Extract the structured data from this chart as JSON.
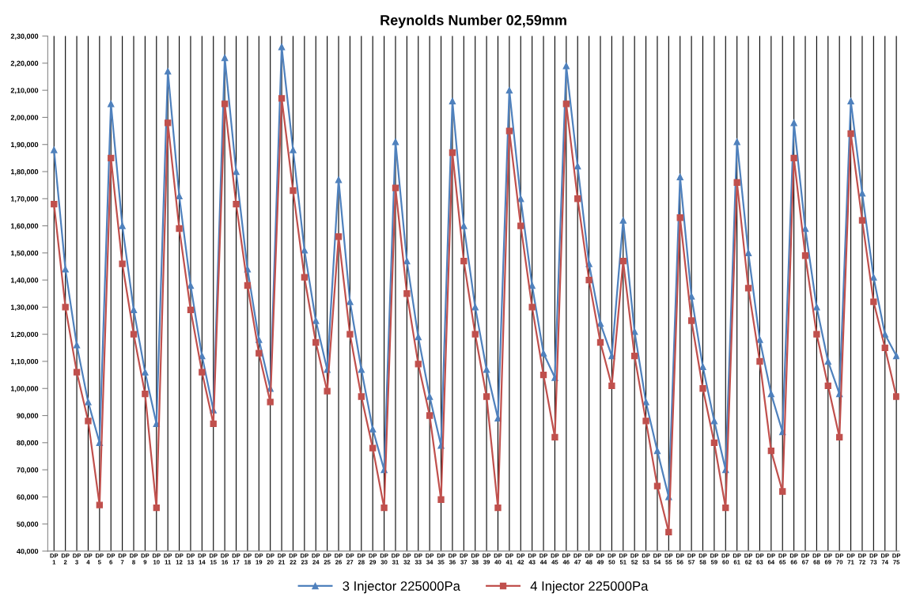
{
  "chart_data": {
    "type": "line",
    "title": "Reynolds Number 02,59mm",
    "categories": [
      "DP\n1",
      "DP\n2",
      "DP\n3",
      "DP\n4",
      "DP\n5",
      "DP\n6",
      "DP\n7",
      "DP\n8",
      "DP\n9",
      "DP\n10",
      "DP\n11",
      "DP\n12",
      "DP\n13",
      "DP\n14",
      "DP\n15",
      "DP\n16",
      "DP\n17",
      "DP\n18",
      "DP\n19",
      "DP\n20",
      "DP\n21",
      "DP\n22",
      "DP\n23",
      "DP\n24",
      "DP\n25",
      "DP\n26",
      "DP\n27",
      "DP\n28",
      "DP\n29",
      "DP\n30",
      "DP\n31",
      "DP\n32",
      "DP\n33",
      "DP\n34",
      "DP\n35",
      "DP\n36",
      "DP\n37",
      "DP\n38",
      "DP\n39",
      "DP\n40",
      "DP\n41",
      "DP\n42",
      "DP\n43",
      "DP\n44",
      "DP\n45",
      "DP\n46",
      "DP\n47",
      "DP\n48",
      "DP\n49",
      "DP\n50",
      "DP\n51",
      "DP\n52",
      "DP\n53",
      "DP\n54",
      "DP\n55",
      "DP\n56",
      "DP\n57",
      "DP\n58",
      "DP\n59",
      "DP\n60",
      "DP\n61",
      "DP\n62",
      "DP\n63",
      "DP\n64",
      "DP\n65",
      "DP\n66",
      "DP\n67",
      "DP\n68",
      "DP\n69",
      "DP\n70",
      "DP\n71",
      "DP\n72",
      "DP\n73",
      "DP\n74",
      "DP\n75"
    ],
    "series": [
      {
        "name": "3 Injector 225000Pa",
        "color": "#4f81bd",
        "marker": "triangle",
        "values": [
          188000,
          144000,
          116000,
          95000,
          80000,
          205000,
          160000,
          129000,
          106000,
          87000,
          217000,
          171000,
          138000,
          112000,
          92000,
          222000,
          180000,
          144000,
          118000,
          100000,
          226000,
          188000,
          151000,
          125000,
          107000,
          177000,
          132000,
          107000,
          85000,
          70000,
          191000,
          147000,
          119000,
          97000,
          79000,
          206000,
          160000,
          130000,
          107000,
          89000,
          210000,
          170000,
          138000,
          113000,
          104000,
          219000,
          182000,
          146000,
          124000,
          112000,
          162000,
          121000,
          95000,
          77000,
          60000,
          178000,
          134000,
          108000,
          88000,
          70000,
          191000,
          150000,
          118000,
          98000,
          84000,
          198000,
          159000,
          130000,
          110000,
          98000,
          206000,
          172000,
          141000,
          120000,
          112000
        ]
      },
      {
        "name": "4 Injector 225000Pa",
        "color": "#c0504d",
        "marker": "square",
        "values": [
          168000,
          130000,
          106000,
          88000,
          57000,
          185000,
          146000,
          120000,
          98000,
          56000,
          198000,
          159000,
          129000,
          106000,
          87000,
          205000,
          168000,
          138000,
          113000,
          95000,
          207000,
          173000,
          141000,
          117000,
          99000,
          156000,
          120000,
          97000,
          78000,
          56000,
          174000,
          135000,
          109000,
          90000,
          59000,
          187000,
          147000,
          120000,
          97000,
          56000,
          195000,
          160000,
          130000,
          105000,
          82000,
          205000,
          170000,
          140000,
          117000,
          101000,
          147000,
          112000,
          88000,
          64000,
          47000,
          163000,
          125000,
          100000,
          80000,
          56000,
          176000,
          137000,
          110000,
          77000,
          62000,
          185000,
          149000,
          120000,
          101000,
          82000,
          194000,
          162000,
          132000,
          115000,
          97000
        ]
      }
    ],
    "ylim": [
      40000,
      230000
    ],
    "yticks": [
      {
        "value": 40000,
        "label": "40,000"
      },
      {
        "value": 50000,
        "label": "50,000"
      },
      {
        "value": 60000,
        "label": "60,000"
      },
      {
        "value": 70000,
        "label": "70,000"
      },
      {
        "value": 80000,
        "label": "80,000"
      },
      {
        "value": 90000,
        "label": "90,000"
      },
      {
        "value": 100000,
        "label": "1,00,000"
      },
      {
        "value": 110000,
        "label": "1,10,000"
      },
      {
        "value": 120000,
        "label": "1,20,000"
      },
      {
        "value": 130000,
        "label": "1,30,000"
      },
      {
        "value": 140000,
        "label": "1,40,000"
      },
      {
        "value": 150000,
        "label": "1,50,000"
      },
      {
        "value": 160000,
        "label": "1,60,000"
      },
      {
        "value": 170000,
        "label": "1,70,000"
      },
      {
        "value": 180000,
        "label": "1,80,000"
      },
      {
        "value": 190000,
        "label": "1,90,000"
      },
      {
        "value": 200000,
        "label": "2,00,000"
      },
      {
        "value": 210000,
        "label": "2,10,000"
      },
      {
        "value": 220000,
        "label": "2,20,000"
      },
      {
        "value": 230000,
        "label": "2,30,000"
      }
    ],
    "grid": "x",
    "legend": "bottom",
    "line_style": "solid"
  }
}
